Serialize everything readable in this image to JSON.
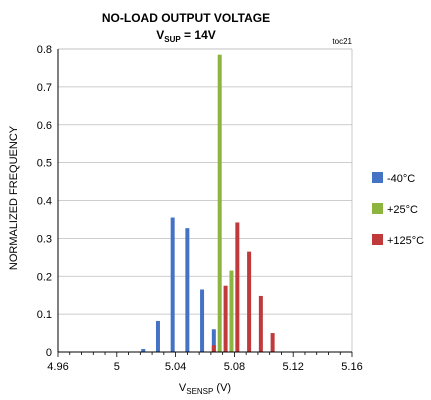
{
  "chart_data": {
    "type": "bar",
    "title_line1": "NO-LOAD OUTPUT VOLTAGE",
    "title_line2_main": "V",
    "title_line2_sub": "SUP",
    "title_line2_rest": " = 14V",
    "figure_code": "toc21",
    "xlabel_main": "V",
    "xlabel_sub": "SENSP",
    "xlabel_rest": " (V)",
    "ylabel": "NORMALIZED FREQUENCY",
    "xlim": [
      4.96,
      5.16
    ],
    "ylim": [
      0,
      0.8
    ],
    "x_ticks": [
      "4.96",
      "5",
      "5.04",
      "5.08",
      "5.12",
      "5.16"
    ],
    "y_ticks": [
      "0",
      "0.1",
      "0.2",
      "0.3",
      "0.4",
      "0.5",
      "0.6",
      "0.7",
      "0.8"
    ],
    "grid": "horizontal",
    "legend_position": "right",
    "series": [
      {
        "name": "-40°C",
        "color": "#4472C4",
        "x": [
          5.018,
          5.028,
          5.038,
          5.048,
          5.058,
          5.066
        ],
        "values": [
          0.008,
          0.082,
          0.355,
          0.327,
          0.165,
          0.06
        ]
      },
      {
        "name": "+25°C",
        "color": "#8DB43E",
        "x": [
          5.07,
          5.078
        ],
        "values": [
          0.785,
          0.215
        ]
      },
      {
        "name": "+125°C",
        "color": "#C0393B",
        "x": [
          5.066,
          5.074,
          5.082,
          5.09,
          5.098,
          5.106,
          5.114
        ],
        "values": [
          0.018,
          0.175,
          0.342,
          0.265,
          0.148,
          0.05,
          0.0
        ]
      }
    ]
  }
}
